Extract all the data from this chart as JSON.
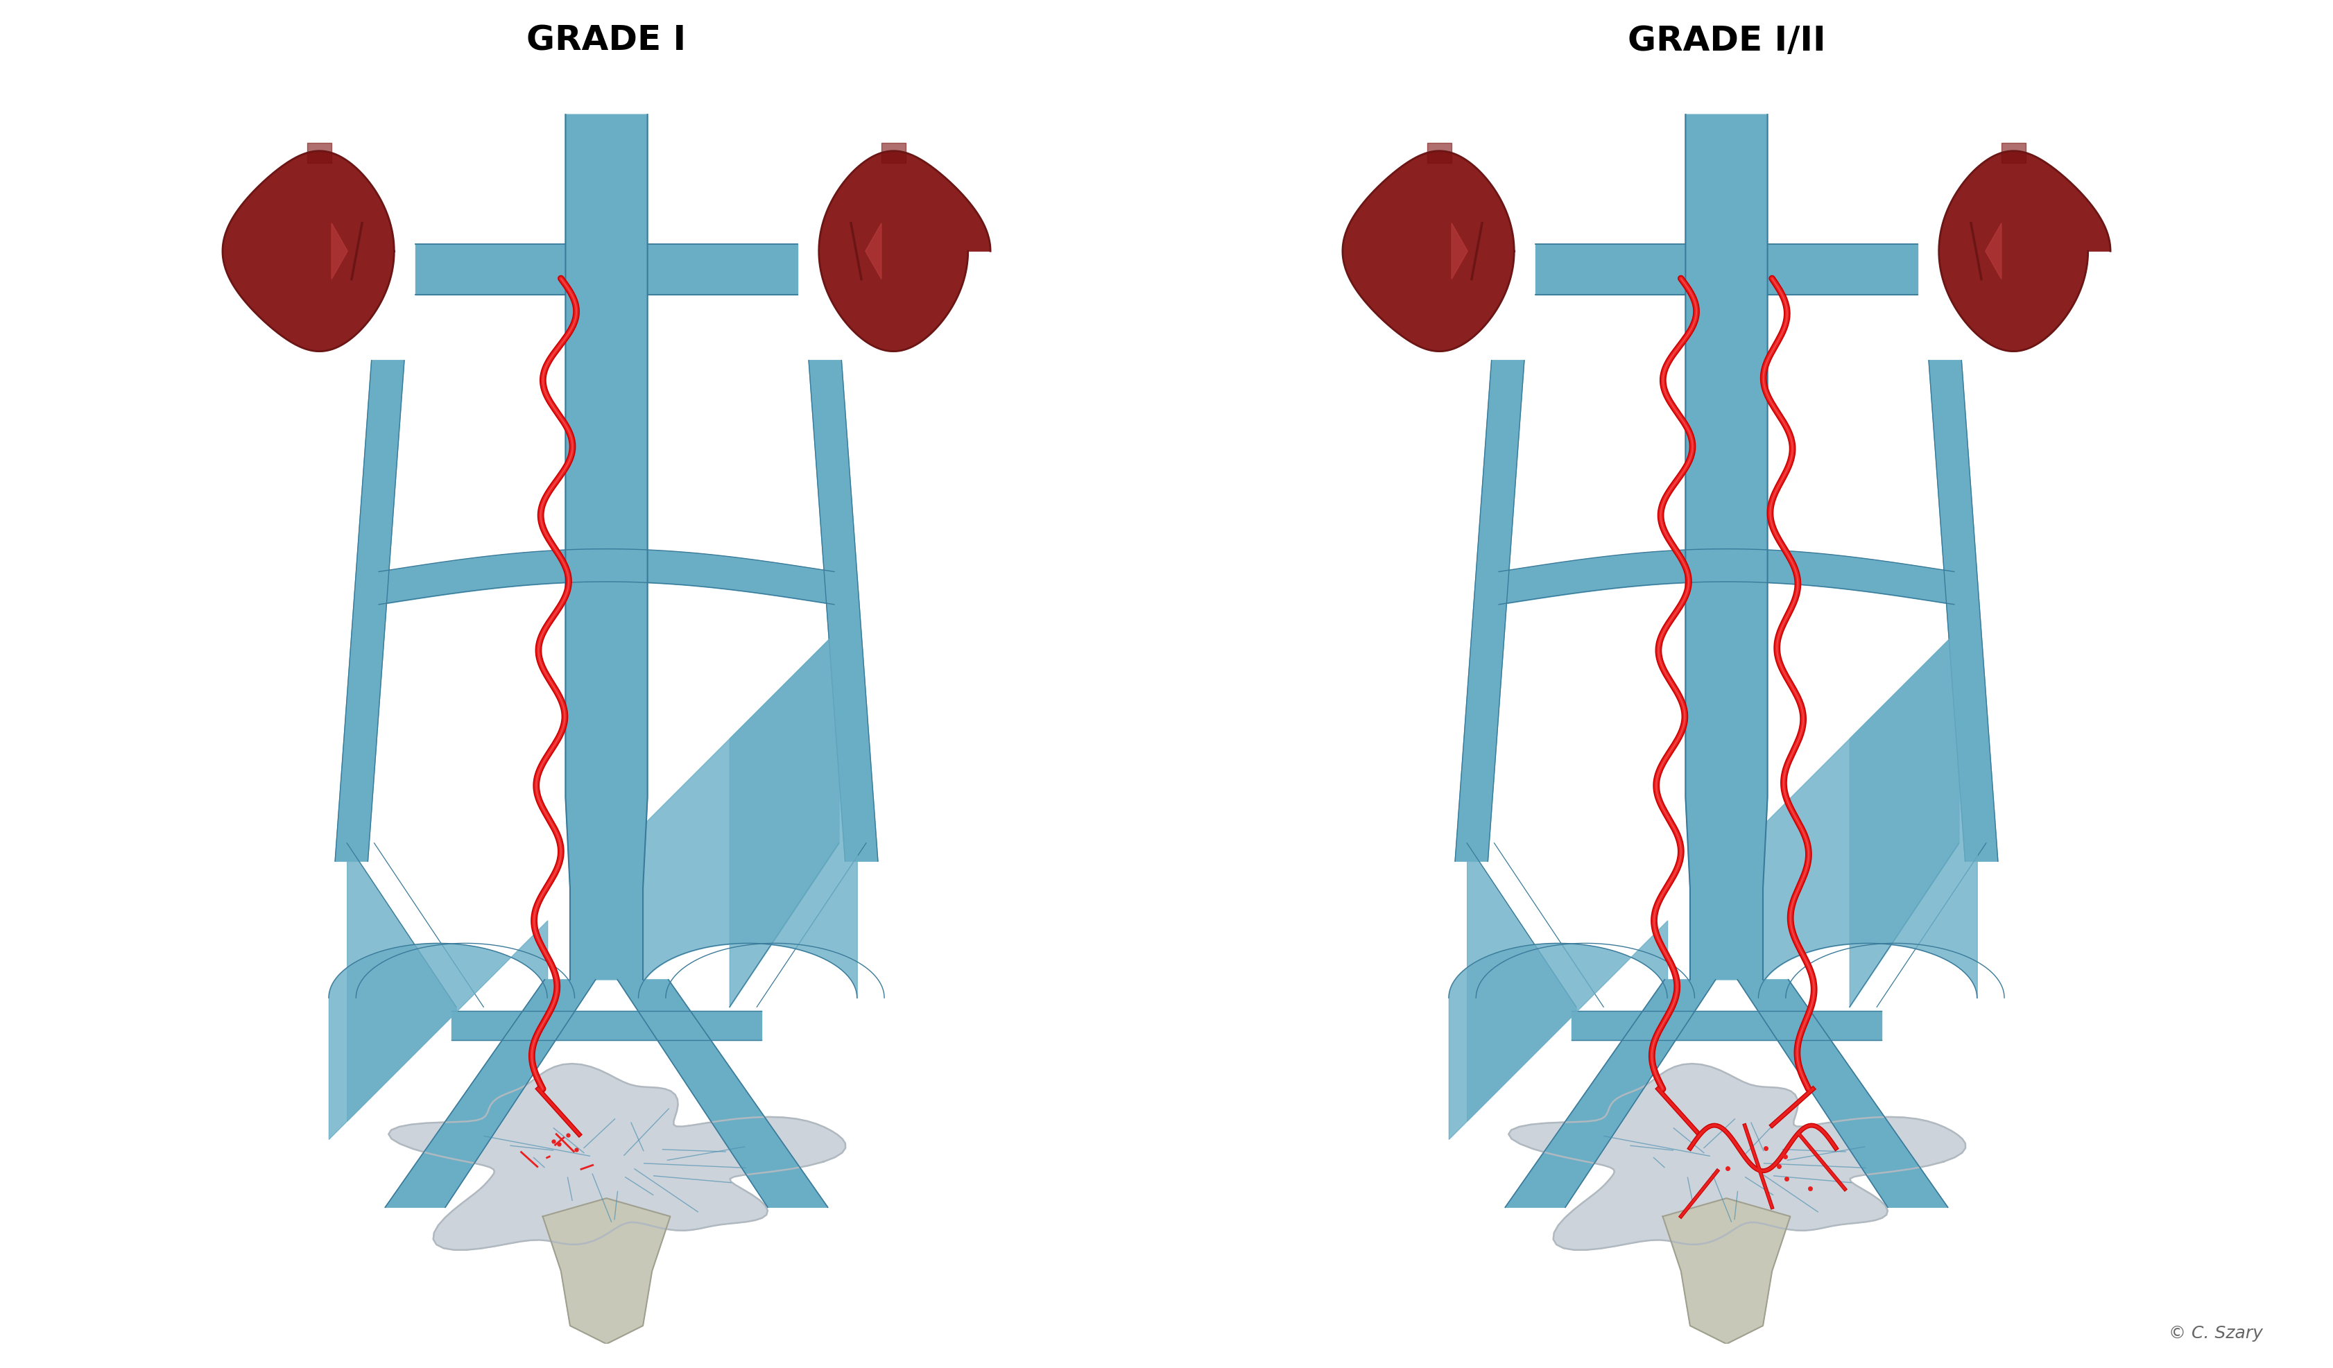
{
  "title_left": "GRADE I",
  "title_right": "GRADE I/II",
  "title_fontsize": 36,
  "title_fontweight": "bold",
  "background_color": "#ffffff",
  "vein_color": "#6aaec6",
  "vein_dark": "#4a8fb0",
  "vein_edge": "#3a7a9a",
  "kidney_color": "#8b2020",
  "kidney_dark": "#6b1515",
  "kidney_highlight": "#c44040",
  "red_vein_color": "#e82020",
  "red_vein_dark": "#cc0000",
  "pelvic_color": "#b0b8c0",
  "pelvic_light": "#c8d0d8",
  "bone_color": "#c8c8b8",
  "bone_edge": "#a0a090",
  "copyright_text": "© C. Szary",
  "copyright_fontsize": 18
}
